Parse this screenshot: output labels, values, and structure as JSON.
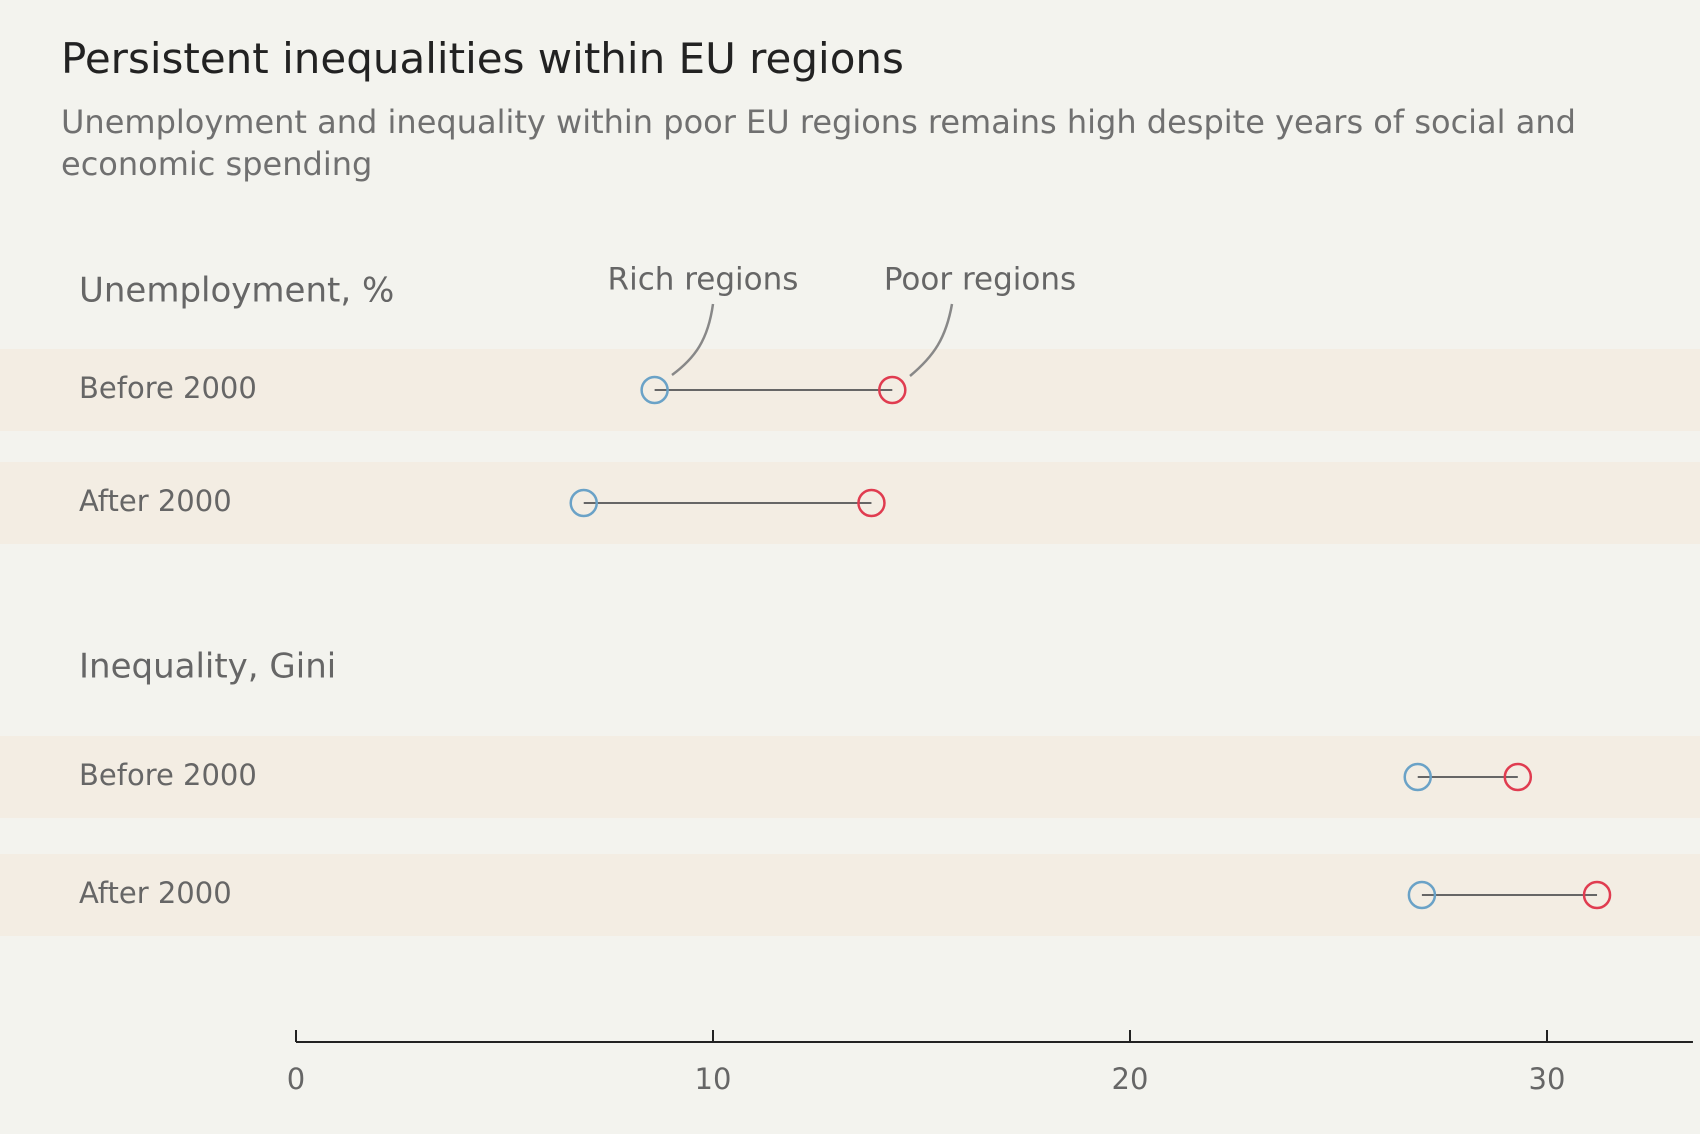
{
  "title": "Persistent inequalities within EU regions",
  "subtitle": "Unemployment and inequality within poor EU regions remains high despite years of social and economic spending",
  "colors": {
    "background": "#f3f3ee",
    "band": "#f3ede3",
    "rich": "#6aa2c7",
    "poor": "#e03c50",
    "connector": "#666666"
  },
  "annotations": {
    "rich": "Rich regions",
    "poor": "Poor regions"
  },
  "chart_data": {
    "type": "dumbbell",
    "title": "Persistent inequalities within EU regions",
    "subtitle": "Unemployment and inequality within poor EU regions remains high despite years of social and economic spending",
    "xlim": [
      0,
      33.5
    ],
    "xticks": [
      0,
      10,
      20,
      30
    ],
    "grid": false,
    "series_names": [
      "Rich regions",
      "Poor regions"
    ],
    "groups": [
      {
        "label": "Unemployment, %",
        "rows": [
          {
            "label": "Before 2000",
            "rich": 8.6,
            "poor": 14.3
          },
          {
            "label": "After 2000",
            "rich": 6.9,
            "poor": 13.8
          }
        ]
      },
      {
        "label": "Inequality, Gini",
        "rows": [
          {
            "label": "Before 2000",
            "rich": 26.9,
            "poor": 29.3
          },
          {
            "label": "After 2000",
            "rich": 27.0,
            "poor": 31.2
          }
        ]
      }
    ]
  }
}
